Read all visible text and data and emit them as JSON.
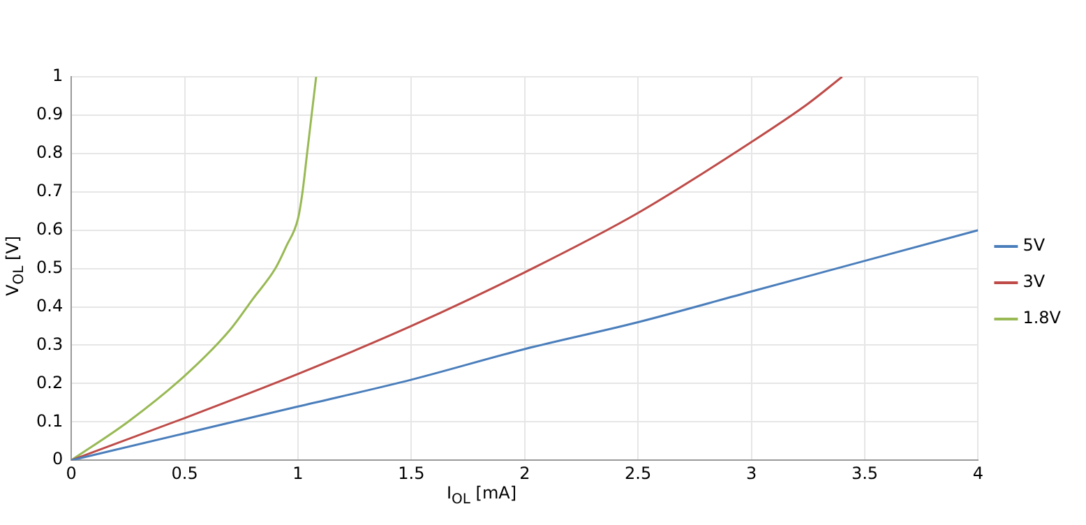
{
  "chart_data": {
    "type": "line",
    "xlabel": "I$_{OL}$ [mA]",
    "ylabel": "V$_{OL}$ [V]",
    "xlim": [
      0,
      4
    ],
    "xticks": [
      0,
      0.5,
      1,
      1.5,
      2,
      2.5,
      3,
      3.5,
      4
    ],
    "ylim": [
      0,
      1
    ],
    "yticks": [
      0,
      0.1,
      0.2,
      0.3,
      0.4,
      0.5,
      0.6,
      0.7,
      0.8,
      0.9,
      1
    ],
    "grid": true,
    "legend": "right",
    "marker": "none",
    "line_style": "solid",
    "series": [
      {
        "name": "5V",
        "color": "#4a7ebb",
        "x": [
          0,
          0.5,
          1,
          1.5,
          2,
          2.5,
          3,
          3.5,
          4
        ],
        "values": [
          0,
          0.07,
          0.14,
          0.21,
          0.29,
          0.36,
          0.44,
          0.52,
          0.6
        ]
      },
      {
        "name": "3V",
        "color": "#be4b48",
        "x": [
          0,
          0.5,
          1,
          1.5,
          2,
          2.5,
          3,
          3.25,
          3.4
        ],
        "values": [
          0,
          0.11,
          0.225,
          0.35,
          0.49,
          0.645,
          0.83,
          0.93,
          1
        ]
      },
      {
        "name": "1.8V",
        "color": "#98b954",
        "x": [
          0,
          0.25,
          0.5,
          0.7,
          0.8,
          0.9,
          0.95,
          1,
          1.02,
          1.04,
          1.06,
          1.08
        ],
        "values": [
          0,
          0.1,
          0.22,
          0.34,
          0.42,
          0.5,
          0.56,
          0.63,
          0.7,
          0.8,
          0.9,
          1
        ]
      }
    ]
  }
}
